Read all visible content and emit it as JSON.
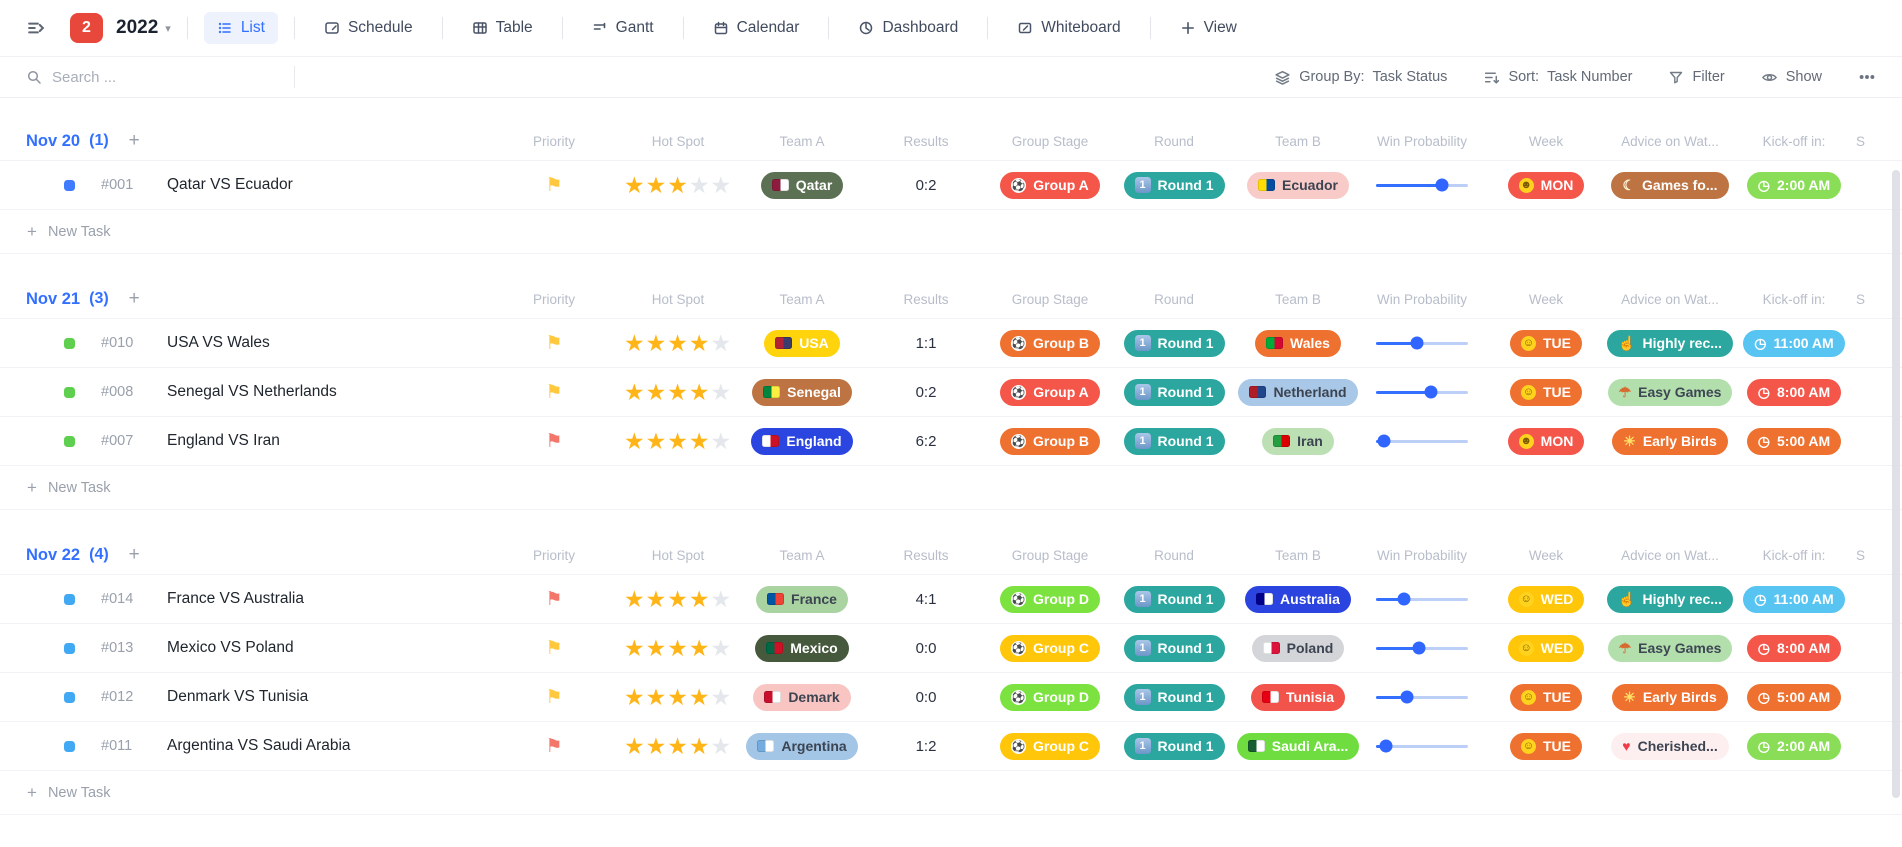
{
  "toolbar": {
    "badge": "2",
    "title": "2022",
    "tabs": [
      {
        "label": "List"
      },
      {
        "label": "Schedule"
      },
      {
        "label": "Table"
      },
      {
        "label": "Gantt"
      },
      {
        "label": "Calendar"
      },
      {
        "label": "Dashboard"
      },
      {
        "label": "Whiteboard"
      }
    ],
    "add_view_label": "View"
  },
  "filter_bar": {
    "search_placeholder": "Search ...",
    "group_by_label": "Group By:",
    "group_by_value": "Task Status",
    "sort_label": "Sort:",
    "sort_value": "Task Number",
    "filter_label": "Filter",
    "show_label": "Show"
  },
  "columns": [
    "Priority",
    "Hot Spot",
    "Team A",
    "Results",
    "Group Stage",
    "Round",
    "Team B",
    "Win Probability",
    "Week",
    "Advice on Wat...",
    "Kick-off in:",
    "S"
  ],
  "new_task_label": "New Task",
  "accent_color": "#3370ff",
  "groups": [
    {
      "title": "Nov 20",
      "count": "(1)",
      "status_color": "#3f7bff",
      "rows": [
        {
          "number": "#001",
          "title": "Qatar VS Ecuador",
          "priority": "yellow-flag",
          "priority_color": "#ffc83d",
          "stars": 3,
          "team_a": {
            "label": "Qatar",
            "bg": "#5c7153",
            "color": "#ffffff",
            "flag_colors": [
              "#8d1b3d",
              "#ffffff"
            ]
          },
          "results": "0:2",
          "group_stage": {
            "label": "Group A",
            "bg": "#f4564a"
          },
          "round": {
            "label": "Round 1",
            "bg": "#2ba7a0"
          },
          "team_b": {
            "label": "Ecuador",
            "bg": "#f8cbc8",
            "color": "#3c4452",
            "flag_colors": [
              "#ffdd00",
              "#034ea2"
            ]
          },
          "win_probability_pct": 72,
          "week": {
            "label": "MON",
            "bg": "#f4564a",
            "icon": "zany-face"
          },
          "advice": {
            "label": "Games fo...",
            "bg": "#bd7442",
            "color": "#ffffff",
            "icon": "owl"
          },
          "kickoff": {
            "label": "2:00 AM",
            "bg": "#8ade57",
            "color": "#ffffff",
            "icon": "clock"
          }
        }
      ]
    },
    {
      "title": "Nov 21",
      "count": "(3)",
      "status_color": "#5ecf4e",
      "rows": [
        {
          "number": "#010",
          "title": "USA VS Wales",
          "priority": "yellow-flag",
          "priority_color": "#ffc83d",
          "stars": 4,
          "team_a": {
            "label": "USA",
            "bg": "#ffd40d",
            "color": "#ffffff",
            "flag_colors": [
              "#b22234",
              "#3c3b6e"
            ]
          },
          "results": "1:1",
          "group_stage": {
            "label": "Group B",
            "bg": "#ee7130"
          },
          "round": {
            "label": "Round 1",
            "bg": "#2ba7a0"
          },
          "team_b": {
            "label": "Wales",
            "bg": "#ee7130",
            "color": "#ffffff",
            "flag_colors": [
              "#00ab39",
              "#d30731"
            ]
          },
          "win_probability_pct": 45,
          "week": {
            "label": "TUE",
            "bg": "#ee7130",
            "icon": "neutral-face"
          },
          "advice": {
            "label": "Highly rec...",
            "bg": "#2ba7a0",
            "color": "#ffffff",
            "icon": "thumbs-up"
          },
          "kickoff": {
            "label": "11:00 AM",
            "bg": "#57c4f1",
            "color": "#ffffff",
            "icon": "clock"
          }
        },
        {
          "number": "#008",
          "title": "Senegal VS Netherlands",
          "priority": "yellow-flag",
          "priority_color": "#ffc83d",
          "stars": 4,
          "team_a": {
            "label": "Senegal",
            "bg": "#bd7442",
            "color": "#ffffff",
            "flag_colors": [
              "#00853f",
              "#fdef42"
            ]
          },
          "results": "0:2",
          "group_stage": {
            "label": "Group A",
            "bg": "#f4564a"
          },
          "round": {
            "label": "Round 1",
            "bg": "#2ba7a0"
          },
          "team_b": {
            "label": "Netherland",
            "bg": "#a9c7e6",
            "color": "#3c4452",
            "flag_colors": [
              "#ae1c28",
              "#21468b"
            ]
          },
          "win_probability_pct": 60,
          "week": {
            "label": "TUE",
            "bg": "#ee7130",
            "icon": "neutral-face"
          },
          "advice": {
            "label": "Easy Games",
            "bg": "#b2dfac",
            "color": "#3e4654",
            "icon": "beach-umbrella"
          },
          "kickoff": {
            "label": "8:00 AM",
            "bg": "#f4564a",
            "color": "#ffffff",
            "icon": "clock"
          }
        },
        {
          "number": "#007",
          "title": "England VS Iran",
          "priority": "red-flag",
          "priority_color": "#f3766b",
          "stars": 4,
          "team_a": {
            "label": "England",
            "bg": "#2b46e0",
            "color": "#ffffff",
            "flag_colors": [
              "#ffffff",
              "#ce1124"
            ]
          },
          "results": "6:2",
          "group_stage": {
            "label": "Group B",
            "bg": "#ee7130"
          },
          "round": {
            "label": "Round 1",
            "bg": "#2ba7a0"
          },
          "team_b": {
            "label": "Iran",
            "bg": "#bce0b4",
            "color": "#3c4452",
            "flag_colors": [
              "#239f40",
              "#da0000"
            ]
          },
          "win_probability_pct": 9,
          "week": {
            "label": "MON",
            "bg": "#f4564a",
            "icon": "zany-face"
          },
          "advice": {
            "label": "Early Birds",
            "bg": "#ee7130",
            "color": "#ffffff",
            "icon": "parrot"
          },
          "kickoff": {
            "label": "5:00 AM",
            "bg": "#ee7130",
            "color": "#ffffff",
            "icon": "clock"
          }
        }
      ]
    },
    {
      "title": "Nov 22",
      "count": "(4)",
      "status_color": "#41a9f3",
      "rows": [
        {
          "number": "#014",
          "title": "France VS Australia",
          "priority": "red-flag",
          "priority_color": "#f3766b",
          "stars": 4,
          "team_a": {
            "label": "France",
            "bg": "#a9d4a1",
            "color": "#3c4452",
            "flag_colors": [
              "#0055a4",
              "#ef4135"
            ]
          },
          "results": "4:1",
          "group_stage": {
            "label": "Group D",
            "bg": "#7ce23f"
          },
          "round": {
            "label": "Round 1",
            "bg": "#2ba7a0"
          },
          "team_b": {
            "label": "Australia",
            "bg": "#2b44e0",
            "color": "#ffffff",
            "flag_colors": [
              "#00008b",
              "#ffffff"
            ]
          },
          "win_probability_pct": 30,
          "week": {
            "label": "WED",
            "bg": "#ffc60a",
            "icon": "laughing-face"
          },
          "advice": {
            "label": "Highly rec...",
            "bg": "#2ba7a0",
            "color": "#ffffff",
            "icon": "thumbs-up"
          },
          "kickoff": {
            "label": "11:00 AM",
            "bg": "#57c4f1",
            "color": "#ffffff",
            "icon": "clock"
          }
        },
        {
          "number": "#013",
          "title": "Mexico VS Poland",
          "priority": "yellow-flag",
          "priority_color": "#ffc83d",
          "stars": 4,
          "team_a": {
            "label": "Mexico",
            "bg": "#47593c",
            "color": "#ffffff",
            "flag_colors": [
              "#006847",
              "#ce1126"
            ]
          },
          "results": "0:0",
          "group_stage": {
            "label": "Group C",
            "bg": "#ffc60a"
          },
          "round": {
            "label": "Round 1",
            "bg": "#2ba7a0"
          },
          "team_b": {
            "label": "Poland",
            "bg": "#d3d5d8",
            "color": "#3c4452",
            "flag_colors": [
              "#ffffff",
              "#dc143c"
            ]
          },
          "win_probability_pct": 47,
          "week": {
            "label": "WED",
            "bg": "#ffc60a",
            "icon": "laughing-face"
          },
          "advice": {
            "label": "Easy Games",
            "bg": "#b2dfac",
            "color": "#3e4654",
            "icon": "beach-umbrella"
          },
          "kickoff": {
            "label": "8:00 AM",
            "bg": "#f4564a",
            "color": "#ffffff",
            "icon": "clock"
          }
        },
        {
          "number": "#012",
          "title": "Denmark VS Tunisia",
          "priority": "yellow-flag",
          "priority_color": "#ffc83d",
          "stars": 4,
          "team_a": {
            "label": "Demark",
            "bg": "#f8c5c3",
            "color": "#3c4452",
            "flag_colors": [
              "#c8102e",
              "#ffffff"
            ]
          },
          "results": "0:0",
          "group_stage": {
            "label": "Group D",
            "bg": "#7ce23f"
          },
          "round": {
            "label": "Round 1",
            "bg": "#2ba7a0"
          },
          "team_b": {
            "label": "Tunisia",
            "bg": "#f2544c",
            "color": "#ffffff",
            "flag_colors": [
              "#e70013",
              "#ffffff"
            ]
          },
          "win_probability_pct": 34,
          "week": {
            "label": "TUE",
            "bg": "#ee7130",
            "icon": "neutral-face"
          },
          "advice": {
            "label": "Early Birds",
            "bg": "#ee7130",
            "color": "#ffffff",
            "icon": "parrot"
          },
          "kickoff": {
            "label": "5:00 AM",
            "bg": "#ee7130",
            "color": "#ffffff",
            "icon": "clock"
          }
        },
        {
          "number": "#011",
          "title": "Argentina VS Saudi Arabia",
          "priority": "red-flag",
          "priority_color": "#f3766b",
          "stars": 4,
          "team_a": {
            "label": "Argentina",
            "bg": "#a3c6e6",
            "color": "#3c4452",
            "flag_colors": [
              "#74acdf",
              "#ffffff"
            ]
          },
          "results": "1:2",
          "group_stage": {
            "label": "Group C",
            "bg": "#ffc60a"
          },
          "round": {
            "label": "Round 1",
            "bg": "#2ba7a0"
          },
          "team_b": {
            "label": "Saudi Ara...",
            "bg": "#6fdd3f",
            "color": "#ffffff",
            "flag_colors": [
              "#165d31",
              "#ffffff"
            ]
          },
          "win_probability_pct": 11,
          "week": {
            "label": "TUE",
            "bg": "#ee7130",
            "icon": "neutral-face"
          },
          "advice": {
            "label": "Cherished...",
            "bg": "#fdeff0",
            "color": "#3c4452",
            "icon": "heart"
          },
          "kickoff": {
            "label": "2:00 AM",
            "bg": "#8ade57",
            "color": "#ffffff",
            "icon": "clock"
          }
        }
      ]
    }
  ]
}
